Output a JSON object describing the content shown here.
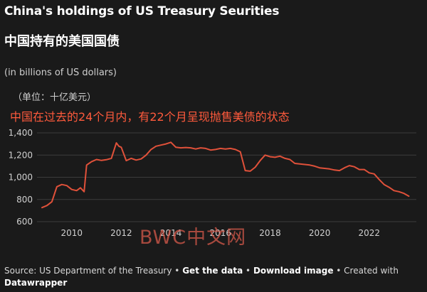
{
  "header": {
    "title": "China's holdings of US Treasury Seurities",
    "subtitle_cn": "中国持有的美国国债",
    "unit_en": "(in billions of US dollars)",
    "unit_cn": "（单位：十亿美元）",
    "headline_cn": "中国在过去的24个月内，有22个月呈现抛售美债的状态"
  },
  "watermark": "BWC中文网",
  "footer": {
    "source": "Source: US Department of the Treasury",
    "sep": " • ",
    "get_data": "Get the data",
    "download": "Download image",
    "created_with": "Created with",
    "tool": "Datawrapper"
  },
  "colors": {
    "background": "#1a1a1a",
    "line": "#e0513a",
    "grid": "#3c3c3c",
    "headline": "#ff5a3c"
  },
  "chart_data": {
    "type": "line",
    "title": "China's holdings of US Treasury Seurities",
    "ylabel": "in billions of US dollars",
    "xlim": [
      2008.6,
      2023.9
    ],
    "ylim": [
      600,
      1400
    ],
    "yticks": [
      600,
      800,
      1000,
      1200,
      1400
    ],
    "ytick_labels": [
      "600",
      "800",
      "1,000",
      "1,200",
      "1,400"
    ],
    "xticks": [
      2010,
      2012,
      2014,
      2016,
      2018,
      2020,
      2022
    ],
    "xtick_labels": [
      "2010",
      "2012",
      "2014",
      "2016",
      "2018",
      "2020",
      "2022"
    ],
    "grid": true,
    "series": [
      {
        "name": "China's holdings of US Treasury Securities",
        "x": [
          2008.8,
          2009.0,
          2009.2,
          2009.4,
          2009.6,
          2009.8,
          2010.0,
          2010.2,
          2010.35,
          2010.5,
          2010.6,
          2010.8,
          2011.0,
          2011.2,
          2011.4,
          2011.6,
          2011.8,
          2011.9,
          2012.0,
          2012.2,
          2012.4,
          2012.6,
          2012.8,
          2013.0,
          2013.2,
          2013.4,
          2013.6,
          2013.8,
          2014.0,
          2014.2,
          2014.4,
          2014.6,
          2014.8,
          2015.0,
          2015.2,
          2015.4,
          2015.6,
          2015.8,
          2016.0,
          2016.2,
          2016.4,
          2016.6,
          2016.8,
          2017.0,
          2017.2,
          2017.4,
          2017.6,
          2017.8,
          2018.0,
          2018.2,
          2018.4,
          2018.6,
          2018.8,
          2019.0,
          2019.2,
          2019.4,
          2019.6,
          2019.8,
          2020.0,
          2020.2,
          2020.4,
          2020.6,
          2020.8,
          2021.0,
          2021.2,
          2021.4,
          2021.6,
          2021.8,
          2022.0,
          2022.2,
          2022.4,
          2022.6,
          2022.8,
          2023.0,
          2023.2,
          2023.4,
          2023.6
        ],
        "values": [
          727,
          745,
          780,
          915,
          935,
          925,
          890,
          880,
          905,
          870,
          1110,
          1140,
          1160,
          1152,
          1158,
          1170,
          1310,
          1280,
          1270,
          1150,
          1170,
          1155,
          1165,
          1200,
          1250,
          1280,
          1290,
          1300,
          1315,
          1270,
          1265,
          1268,
          1265,
          1255,
          1265,
          1260,
          1245,
          1250,
          1260,
          1255,
          1260,
          1250,
          1230,
          1060,
          1055,
          1090,
          1150,
          1200,
          1185,
          1180,
          1190,
          1170,
          1160,
          1125,
          1120,
          1115,
          1110,
          1100,
          1085,
          1080,
          1075,
          1065,
          1060,
          1085,
          1105,
          1095,
          1070,
          1070,
          1040,
          1030,
          980,
          935,
          910,
          880,
          870,
          855,
          830
        ]
      }
    ]
  }
}
